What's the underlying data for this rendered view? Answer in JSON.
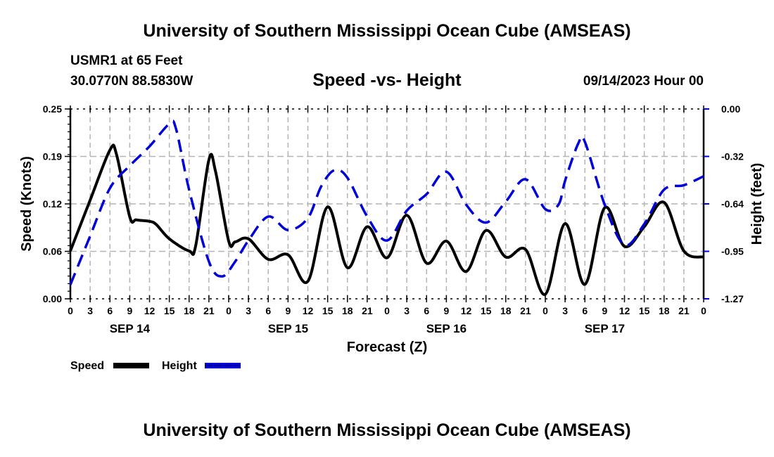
{
  "header": {
    "title": "University of Southern Mississippi Ocean Cube (AMSEAS)",
    "station": "USMR1 at 65 Feet",
    "coords": "30.0770N  88.5830W",
    "subtitle": "Speed -vs- Height",
    "datetime": "09/14/2023 Hour 00"
  },
  "footer": {
    "title": "University of Southern Mississippi Ocean Cube (AMSEAS)"
  },
  "chart_data": {
    "type": "line",
    "title": "Speed -vs- Height",
    "xlabel": "Forecast (Z)",
    "ylabel": "Speed (Knots)",
    "y2label": "Height (feet)",
    "xlim": [
      0,
      96
    ],
    "ylim": [
      0.0,
      0.25
    ],
    "y2lim": [
      -1.27,
      0.0
    ],
    "grid": true,
    "x_tick_hours": [
      0,
      3,
      6,
      9,
      12,
      15,
      18,
      21,
      24,
      27,
      30,
      33,
      36,
      39,
      42,
      45,
      48,
      51,
      54,
      57,
      60,
      63,
      66,
      69,
      72,
      75,
      78,
      81,
      84,
      87,
      90,
      93,
      96
    ],
    "x_tick_labels": [
      "0",
      "3",
      "6",
      "9",
      "12",
      "15",
      "18",
      "21",
      "0",
      "3",
      "6",
      "9",
      "12",
      "15",
      "18",
      "21",
      "0",
      "3",
      "6",
      "9",
      "12",
      "15",
      "18",
      "21",
      "0",
      "3",
      "6",
      "9",
      "12",
      "15",
      "18",
      "21",
      "0"
    ],
    "date_labels": [
      {
        "label": "SEP 14",
        "hour": 9
      },
      {
        "label": "SEP 15",
        "hour": 33
      },
      {
        "label": "SEP 16",
        "hour": 57
      },
      {
        "label": "SEP 17",
        "hour": 81
      }
    ],
    "y_ticks": [
      "0.00",
      "0.06",
      "0.12",
      "0.19",
      "0.25"
    ],
    "y_tick_values": [
      0.0,
      0.0625,
      0.125,
      0.1875,
      0.25
    ],
    "y2_ticks": [
      "0.00",
      "-0.32",
      "-0.64",
      "-0.95",
      "-1.27"
    ],
    "y2_tick_values": [
      0.0,
      -0.3175,
      -0.635,
      -0.9525,
      -1.27
    ],
    "legend": {
      "placement": "bottom-left",
      "entries": [
        "Speed",
        "Height"
      ]
    },
    "series": [
      {
        "name": "Speed",
        "axis": "left",
        "color": "#000000",
        "style": "solid",
        "x": [
          0,
          3,
          6,
          7,
          9,
          10,
          12,
          13,
          15,
          18,
          19,
          21,
          22,
          24,
          25,
          27,
          30,
          33,
          36,
          39,
          42,
          45,
          48,
          51,
          54,
          57,
          60,
          63,
          66,
          69,
          72,
          75,
          78,
          81,
          84,
          87,
          90,
          93,
          96
        ],
        "y": [
          0.063,
          0.13,
          0.196,
          0.19,
          0.108,
          0.104,
          0.102,
          0.098,
          0.079,
          0.063,
          0.07,
          0.183,
          0.168,
          0.076,
          0.075,
          0.079,
          0.052,
          0.058,
          0.023,
          0.121,
          0.041,
          0.095,
          0.054,
          0.11,
          0.047,
          0.076,
          0.036,
          0.09,
          0.055,
          0.065,
          0.006,
          0.099,
          0.019,
          0.12,
          0.069,
          0.095,
          0.127,
          0.063,
          0.055
        ]
      },
      {
        "name": "Height",
        "axis": "right",
        "color": "#0000d8",
        "style": "dashed",
        "x": [
          0,
          3,
          6,
          9,
          12,
          15,
          16,
          18,
          21,
          23,
          25,
          27,
          30,
          33,
          36,
          38,
          40,
          42,
          45,
          48,
          51,
          54,
          57,
          60,
          63,
          66,
          69,
          72,
          74,
          75,
          77,
          78,
          81,
          84,
          87,
          90,
          93,
          96
        ],
        "y": [
          -1.176,
          -0.85,
          -0.53,
          -0.38,
          -0.25,
          -0.1,
          -0.13,
          -0.54,
          -1.02,
          -1.12,
          -1.02,
          -0.88,
          -0.72,
          -0.81,
          -0.73,
          -0.52,
          -0.41,
          -0.46,
          -0.72,
          -0.88,
          -0.68,
          -0.57,
          -0.42,
          -0.64,
          -0.76,
          -0.62,
          -0.47,
          -0.67,
          -0.64,
          -0.48,
          -0.23,
          -0.22,
          -0.64,
          -0.91,
          -0.77,
          -0.54,
          -0.51,
          -0.45
        ]
      }
    ]
  }
}
